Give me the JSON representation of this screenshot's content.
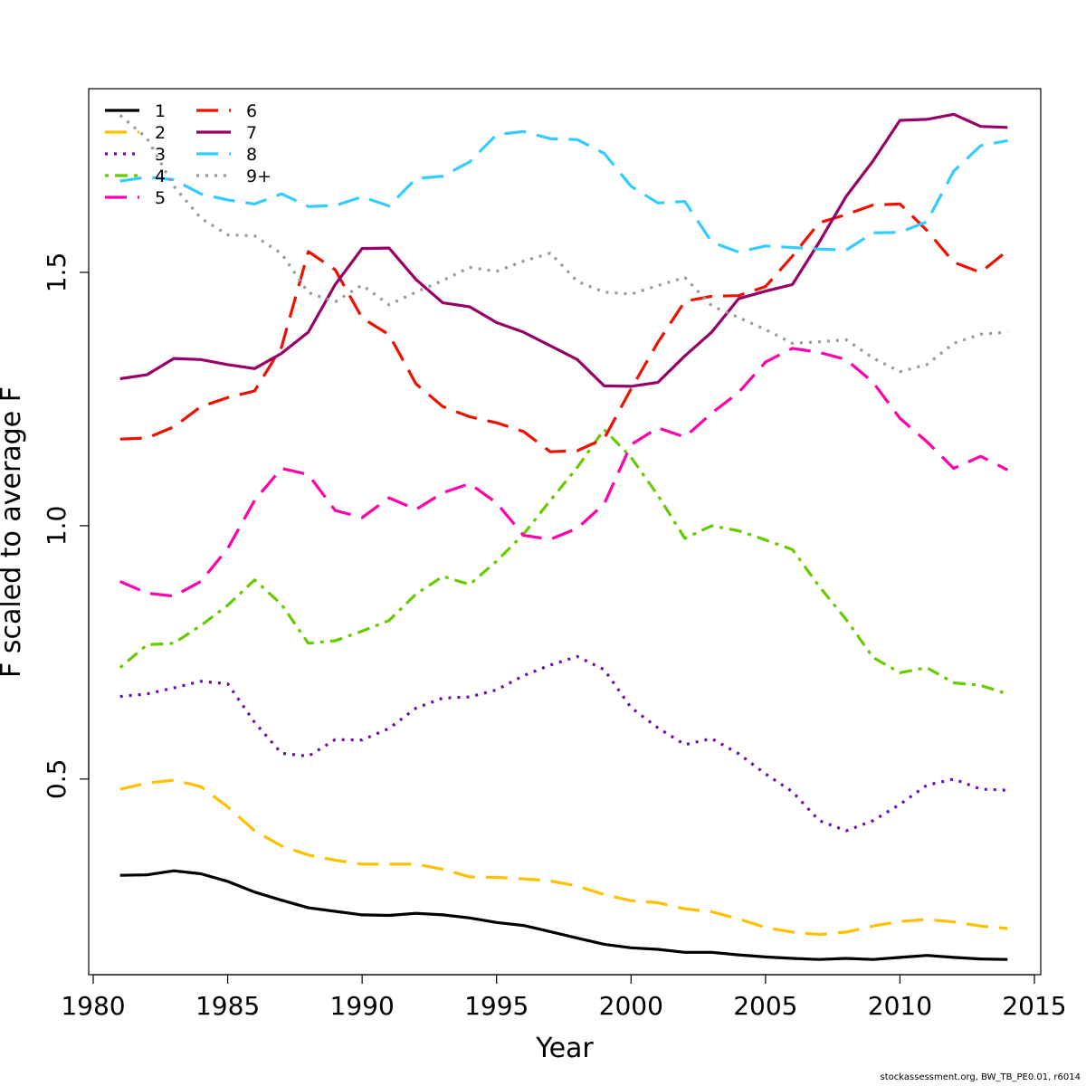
{
  "chart_data": {
    "type": "line",
    "title": "",
    "xlabel": "Year",
    "ylabel": "F scaled to average F",
    "xlim": [
      1980,
      2015
    ],
    "ylim": [
      0.13,
      1.85
    ],
    "xticks": [
      1980,
      1985,
      1990,
      1995,
      2000,
      2005,
      2010,
      2015
    ],
    "yticks": [
      0.5,
      1.0,
      1.5
    ],
    "ytick_labels": [
      "0.5",
      "1.0",
      "1.5"
    ],
    "legend_position": "top-left",
    "grid": false,
    "x": [
      1981,
      1982,
      1983,
      1984,
      1985,
      1986,
      1987,
      1988,
      1989,
      1990,
      1991,
      1992,
      1993,
      1994,
      1995,
      1996,
      1997,
      1998,
      1999,
      2000,
      2001,
      2002,
      2003,
      2004,
      2005,
      2006,
      2007,
      2008,
      2009,
      2010,
      2011,
      2012,
      2013,
      2014
    ],
    "series": [
      {
        "name": "1",
        "color": "#000000",
        "dash": "solid",
        "values": [
          0.31,
          0.311,
          0.319,
          0.313,
          0.298,
          0.277,
          0.261,
          0.246,
          0.239,
          0.232,
          0.231,
          0.235,
          0.232,
          0.226,
          0.217,
          0.211,
          0.199,
          0.186,
          0.174,
          0.167,
          0.164,
          0.158,
          0.158,
          0.153,
          0.149,
          0.146,
          0.144,
          0.146,
          0.144,
          0.148,
          0.152,
          0.148,
          0.145,
          0.144
        ]
      },
      {
        "name": "2",
        "color": "#FFC000",
        "dash": "longdash",
        "values": [
          0.48,
          0.492,
          0.498,
          0.485,
          0.445,
          0.398,
          0.368,
          0.35,
          0.34,
          0.332,
          0.332,
          0.332,
          0.322,
          0.307,
          0.306,
          0.303,
          0.299,
          0.289,
          0.272,
          0.26,
          0.256,
          0.244,
          0.238,
          0.224,
          0.207,
          0.198,
          0.193,
          0.198,
          0.21,
          0.219,
          0.223,
          0.218,
          0.21,
          0.205
        ]
      },
      {
        "name": "3",
        "color": "#6A0DAD",
        "dash": "dotted",
        "values": [
          0.663,
          0.668,
          0.68,
          0.693,
          0.688,
          0.612,
          0.551,
          0.545,
          0.578,
          0.577,
          0.6,
          0.64,
          0.66,
          0.662,
          0.676,
          0.704,
          0.725,
          0.742,
          0.716,
          0.641,
          0.601,
          0.568,
          0.58,
          0.55,
          0.51,
          0.475,
          0.418,
          0.398,
          0.418,
          0.45,
          0.488,
          0.5,
          0.48,
          0.478
        ]
      },
      {
        "name": "4",
        "color": "#66CC00",
        "dash": "dotdash",
        "values": [
          0.72,
          0.765,
          0.768,
          0.803,
          0.843,
          0.893,
          0.845,
          0.768,
          0.773,
          0.792,
          0.813,
          0.865,
          0.9,
          0.884,
          0.93,
          0.983,
          1.05,
          1.115,
          1.19,
          1.135,
          1.06,
          0.975,
          1.0,
          0.99,
          0.972,
          0.953,
          0.88,
          0.815,
          0.74,
          0.71,
          0.72,
          0.69,
          0.685,
          0.668
        ]
      },
      {
        "name": "5",
        "color": "#FF00AA",
        "dash": "longdash",
        "values": [
          0.89,
          0.867,
          0.861,
          0.89,
          0.955,
          1.05,
          1.113,
          1.101,
          1.03,
          1.016,
          1.055,
          1.032,
          1.065,
          1.083,
          1.045,
          0.981,
          0.973,
          0.995,
          1.043,
          1.16,
          1.193,
          1.175,
          1.222,
          1.263,
          1.323,
          1.35,
          1.342,
          1.328,
          1.283,
          1.212,
          1.166,
          1.113,
          1.137,
          1.11
        ]
      },
      {
        "name": "6",
        "color": "#EE1100",
        "dash": "longdash",
        "values": [
          1.171,
          1.173,
          1.195,
          1.235,
          1.253,
          1.266,
          1.352,
          1.541,
          1.505,
          1.41,
          1.377,
          1.28,
          1.235,
          1.215,
          1.203,
          1.186,
          1.146,
          1.148,
          1.172,
          1.27,
          1.362,
          1.443,
          1.453,
          1.454,
          1.472,
          1.532,
          1.598,
          1.614,
          1.633,
          1.635,
          1.583,
          1.52,
          1.5,
          1.543
        ]
      },
      {
        "name": "7",
        "color": "#990066",
        "dash": "solid",
        "values": [
          1.29,
          1.298,
          1.33,
          1.328,
          1.318,
          1.31,
          1.34,
          1.382,
          1.476,
          1.547,
          1.548,
          1.486,
          1.44,
          1.432,
          1.401,
          1.382,
          1.355,
          1.328,
          1.276,
          1.275,
          1.283,
          1.335,
          1.382,
          1.448,
          1.463,
          1.476,
          1.56,
          1.65,
          1.72,
          1.8,
          1.802,
          1.812,
          1.788,
          1.786
        ]
      },
      {
        "name": "8",
        "color": "#33CCFF",
        "dash": "longdash",
        "values": [
          1.68,
          1.688,
          1.683,
          1.655,
          1.643,
          1.635,
          1.655,
          1.63,
          1.632,
          1.649,
          1.631,
          1.685,
          1.69,
          1.718,
          1.772,
          1.778,
          1.764,
          1.762,
          1.735,
          1.67,
          1.637,
          1.64,
          1.56,
          1.54,
          1.552,
          1.549,
          1.546,
          1.544,
          1.578,
          1.579,
          1.6,
          1.7,
          1.75,
          1.76
        ]
      },
      {
        "name": "9+",
        "color": "#999999",
        "dash": "dotted",
        "values": [
          1.81,
          1.765,
          1.67,
          1.607,
          1.574,
          1.572,
          1.537,
          1.46,
          1.442,
          1.475,
          1.436,
          1.461,
          1.484,
          1.51,
          1.502,
          1.522,
          1.538,
          1.482,
          1.461,
          1.457,
          1.474,
          1.49,
          1.434,
          1.411,
          1.387,
          1.36,
          1.363,
          1.367,
          1.331,
          1.304,
          1.318,
          1.36,
          1.378,
          1.382
        ]
      }
    ],
    "footer": "stockassessment.org, BW_TB_PE0.01, r6014"
  }
}
